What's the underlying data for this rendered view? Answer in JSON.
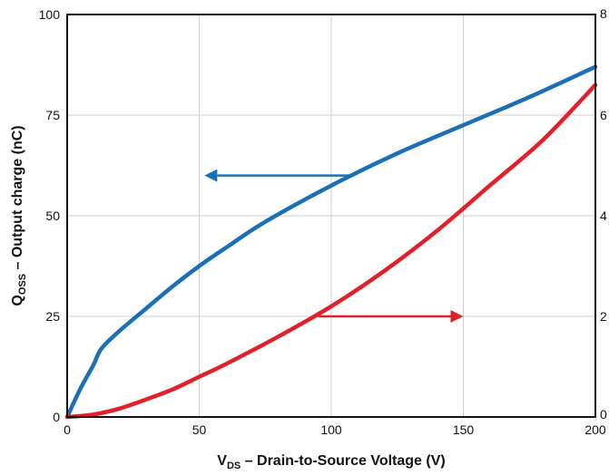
{
  "chart_data": {
    "type": "line",
    "xlabel": {
      "main": "V",
      "sub": "DS",
      "rest": " – Drain-to-Source Voltage (V)"
    },
    "ylabel": {
      "main": "Q",
      "sub": "OSS",
      "rest": " – Output charge (nC)"
    },
    "xlim": [
      0,
      200
    ],
    "ylim_left": [
      0,
      100
    ],
    "ylim_right": [
      0,
      8
    ],
    "x_ticks": [
      0,
      50,
      100,
      150,
      200
    ],
    "y_ticks_left": [
      0,
      25,
      50,
      75,
      100
    ],
    "y_ticks_right": [
      0,
      2,
      4,
      6,
      8
    ],
    "x_tick_labels": [
      "0",
      "50",
      "100",
      "150",
      "200"
    ],
    "y_tick_labels_left": [
      "0",
      "25",
      "50",
      "75",
      "100"
    ],
    "y_tick_labels_right": [
      "0",
      "2",
      "4",
      "6",
      "8"
    ],
    "grid": true,
    "series": [
      {
        "axis": "left",
        "color": "#1a6fb5",
        "x": [
          0,
          5,
          10,
          13,
          20,
          30,
          40,
          50,
          60,
          75,
          100,
          125,
          150,
          175,
          200
        ],
        "y": [
          0,
          7,
          13,
          17,
          21.5,
          27,
          32.5,
          37.5,
          42,
          48.5,
          57.5,
          65.5,
          72.5,
          79.5,
          87
        ]
      },
      {
        "axis": "right",
        "color": "#e1202a",
        "x": [
          0,
          10,
          20,
          30,
          40,
          50,
          60,
          80,
          100,
          120,
          140,
          160,
          180,
          200
        ],
        "y": [
          0,
          0.05,
          0.17,
          0.35,
          0.55,
          0.8,
          1.05,
          1.6,
          2.2,
          2.9,
          3.7,
          4.6,
          5.5,
          6.6
        ]
      }
    ],
    "arrows": [
      {
        "color": "#1a6fb5",
        "axis": "left",
        "y": 60,
        "x_from": 108,
        "x_to": 52,
        "points_to": "left"
      },
      {
        "color": "#e1202a",
        "axis": "right",
        "y": 2,
        "x_from": 95,
        "x_to": 150,
        "points_to": "right"
      }
    ]
  }
}
